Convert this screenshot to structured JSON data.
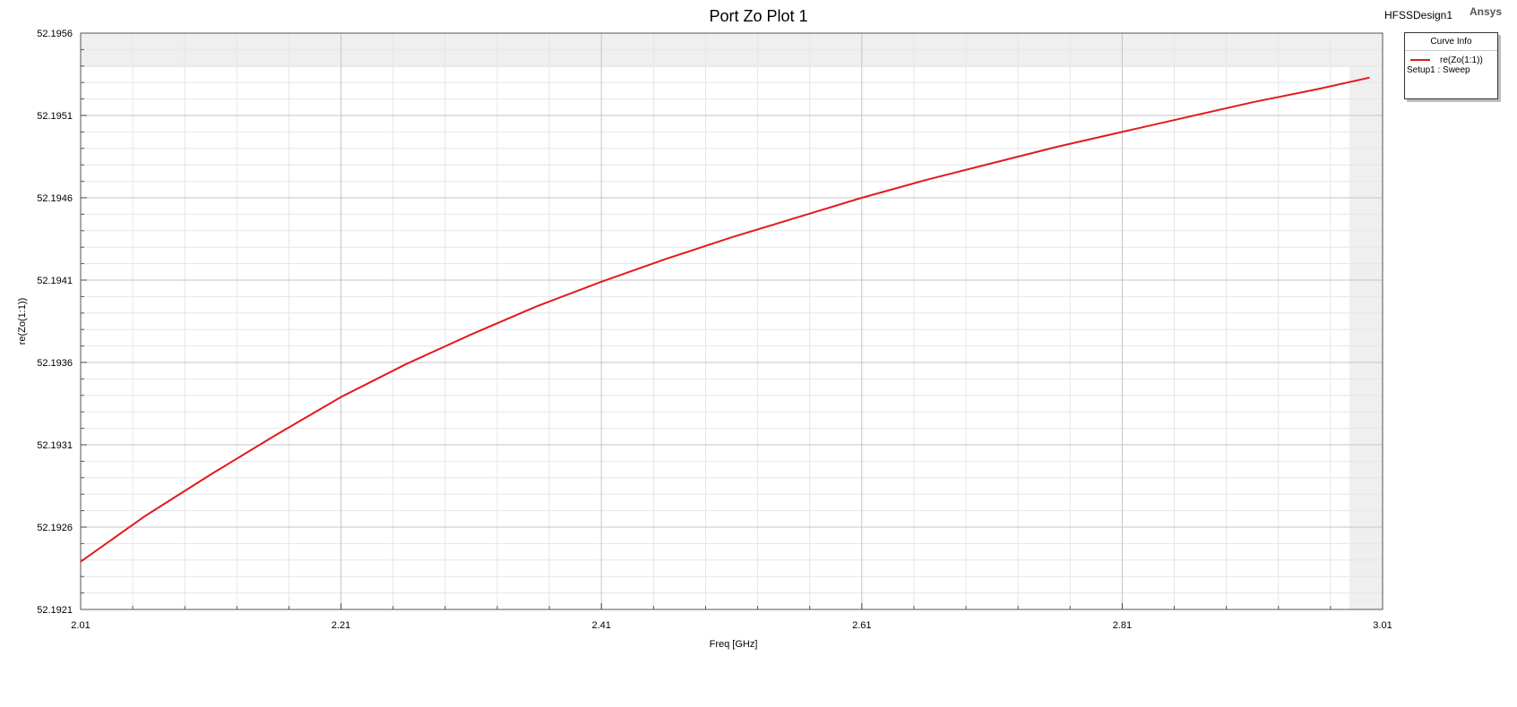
{
  "header": {
    "title": "Port Zo Plot 1",
    "design_name": "HFSSDesign1",
    "brand": "Ansys"
  },
  "legend": {
    "title": "Curve Info",
    "entries": [
      {
        "name": "re(Zo(1:1))",
        "color": "#e31a1c",
        "setup": "Setup1 : Sweep"
      }
    ]
  },
  "chart_data": {
    "type": "line",
    "title": "Port Zo Plot 1",
    "xlabel": "Freq [GHz]",
    "ylabel": "re(Zo(1:1))",
    "xlim": [
      2.01,
      3.01
    ],
    "ylim": [
      52.1921,
      52.1956
    ],
    "x_ticks": [
      "2.01",
      "2.21",
      "2.41",
      "2.61",
      "2.81",
      "3.01"
    ],
    "y_ticks": [
      "52.1921",
      "52.1926",
      "52.1931",
      "52.1936",
      "52.1941",
      "52.1946",
      "52.1951",
      "52.1956"
    ],
    "grid": true,
    "legend_position": "top-right",
    "series": [
      {
        "name": "re(Zo(1:1))",
        "color": "#e31a1c",
        "x": [
          2.01,
          2.06,
          2.11,
          2.16,
          2.21,
          2.26,
          2.31,
          2.36,
          2.41,
          2.46,
          2.51,
          2.56,
          2.61,
          2.66,
          2.71,
          2.76,
          2.81,
          2.86,
          2.91,
          2.96,
          3.0
        ],
        "y": [
          52.19239,
          52.19267,
          52.19292,
          52.19316,
          52.19339,
          52.19359,
          52.19377,
          52.19394,
          52.19409,
          52.19423,
          52.19436,
          52.19448,
          52.1946,
          52.19471,
          52.19481,
          52.19491,
          52.195,
          52.19509,
          52.19518,
          52.19526,
          52.19533
        ]
      }
    ]
  }
}
